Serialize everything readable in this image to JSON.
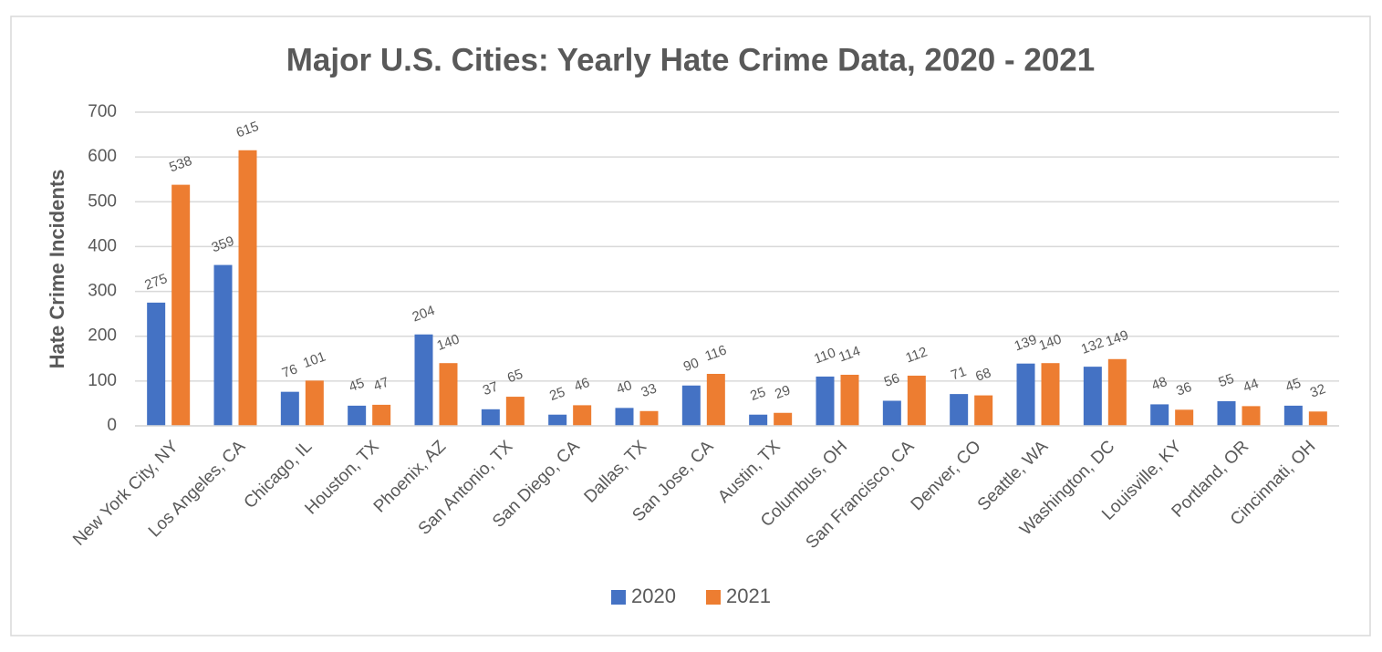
{
  "chart_data": {
    "type": "bar",
    "title": "Major U.S. Cities: Yearly Hate Crime Data, 2020 - 2021",
    "y_label": "Hate Crime Incidents",
    "categories": [
      "New York City, NY",
      "Los Angeles, CA",
      "Chicago, IL",
      "Houston, TX",
      "Phoenix, AZ",
      "San Antonio, TX",
      "San Diego, CA",
      "Dallas, TX",
      "San Jose, CA",
      "Austin, TX",
      "Columbus, OH",
      "San Francisco, CA",
      "Denver, CO",
      "Seattle, WA",
      "Washington, DC",
      "Louisville, KY",
      "Portland, OR",
      "Cincinnati, OH"
    ],
    "series": [
      {
        "name": "2020",
        "color": "#4472c4",
        "values": [
          275,
          359,
          76,
          45,
          204,
          37,
          25,
          40,
          90,
          25,
          110,
          56,
          71,
          139,
          132,
          48,
          55,
          45
        ]
      },
      {
        "name": "2021",
        "color": "#ed7d31",
        "values": [
          538,
          615,
          101,
          47,
          140,
          65,
          46,
          33,
          116,
          29,
          114,
          112,
          68,
          140,
          149,
          36,
          44,
          32
        ]
      }
    ],
    "ylim": [
      0,
      700
    ],
    "yticks": [
      0,
      100,
      200,
      300,
      400,
      500,
      600,
      700
    ],
    "grid": true,
    "legend": "bottom"
  }
}
